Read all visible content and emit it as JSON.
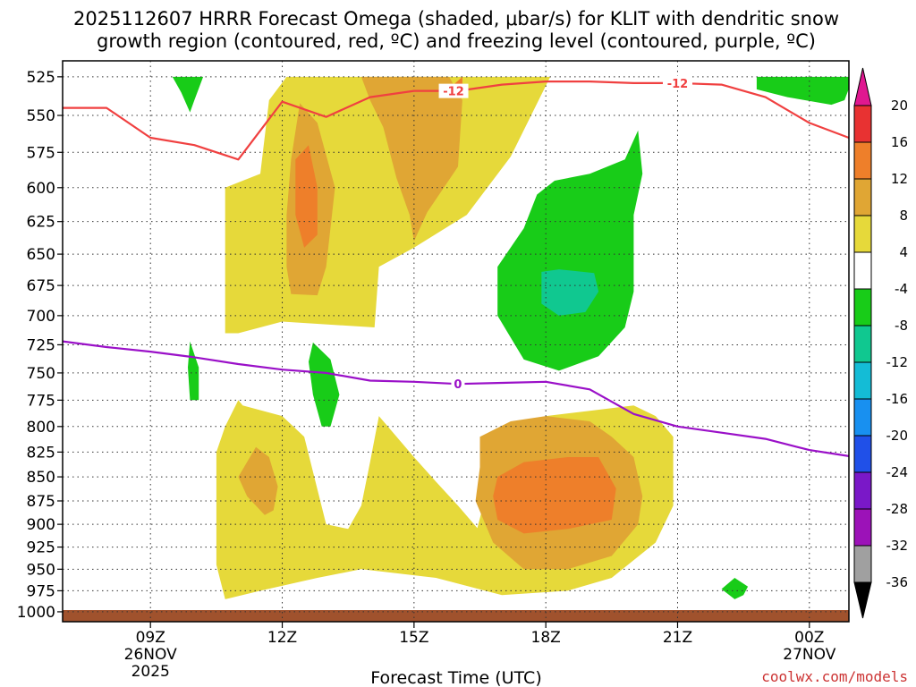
{
  "chart_data": {
    "type": "time-height contour",
    "title_line1": "2025112607 HRRR Forecast Omega (shaded, μbar/s) for KLIT with dendritic snow",
    "title_line2": "growth region (contoured, red, ºC) and freezing level (contoured, purple, ºC)",
    "xlabel": "Forecast Time (UTC)",
    "credit": "coolwx.com/models",
    "y_ticks": [
      "525",
      "550",
      "575",
      "600",
      "625",
      "650",
      "675",
      "700",
      "725",
      "750",
      "775",
      "800",
      "825",
      "850",
      "875",
      "900",
      "925",
      "950",
      "975",
      "1000"
    ],
    "x_ticks": [
      {
        "label": "09Z",
        "sub1": "26NOV",
        "sub2": "2025",
        "hour": 9
      },
      {
        "label": "12Z",
        "sub1": "",
        "sub2": "",
        "hour": 12
      },
      {
        "label": "15Z",
        "sub1": "",
        "sub2": "",
        "hour": 15
      },
      {
        "label": "18Z",
        "sub1": "",
        "sub2": "",
        "hour": 18
      },
      {
        "label": "21Z",
        "sub1": "",
        "sub2": "",
        "hour": 21
      },
      {
        "label": "00Z",
        "sub1": "27NOV",
        "sub2": "",
        "hour": 24
      }
    ],
    "x_range_hours": [
      7.0,
      24.9
    ],
    "colorbar": {
      "labels": [
        "20",
        "16",
        "12",
        "8",
        "4",
        "-4",
        "-8",
        "-12",
        "-16",
        "-20",
        "-24",
        "-28",
        "-32",
        "-36"
      ],
      "colors": [
        "#e83232",
        "#ee7f2a",
        "#e0a634",
        "#e6d93a",
        "#ffffff",
        "#18cc18",
        "#10c890",
        "#14bcd6",
        "#1890f0",
        "#2050e8",
        "#7a18c8",
        "#9c12b8",
        "#a0a0a0"
      ],
      "top_arrow": "#e01890",
      "bottom_arrow": "#000000"
    },
    "series": [
      {
        "name": "dendritic growth -12",
        "color": "#f04040",
        "label": "-12",
        "points": [
          [
            7.0,
            545
          ],
          [
            8.0,
            545
          ],
          [
            9.0,
            565
          ],
          [
            10.0,
            570
          ],
          [
            11.0,
            580
          ],
          [
            12.0,
            541
          ],
          [
            13.0,
            551
          ],
          [
            14.0,
            538
          ],
          [
            15.0,
            534
          ],
          [
            16.0,
            534
          ],
          [
            17.0,
            530
          ],
          [
            18.0,
            528
          ],
          [
            19.0,
            528
          ],
          [
            20.0,
            529
          ],
          [
            21.0,
            529
          ],
          [
            22.0,
            530
          ],
          [
            23.0,
            538
          ],
          [
            24.0,
            555
          ],
          [
            24.9,
            565
          ]
        ]
      },
      {
        "name": "freezing level 0",
        "color": "#9a10c8",
        "label": "0",
        "points": [
          [
            7.0,
            722
          ],
          [
            8.0,
            727
          ],
          [
            9.0,
            731
          ],
          [
            10.0,
            736
          ],
          [
            11.0,
            742
          ],
          [
            12.0,
            747
          ],
          [
            13.0,
            750
          ],
          [
            14.0,
            757
          ],
          [
            15.0,
            758
          ],
          [
            16.0,
            760
          ],
          [
            17.0,
            759
          ],
          [
            18.0,
            758
          ],
          [
            19.0,
            765
          ],
          [
            20.0,
            788
          ],
          [
            21.0,
            800
          ],
          [
            22.0,
            806
          ],
          [
            23.0,
            812
          ],
          [
            24.0,
            823
          ],
          [
            24.9,
            829
          ]
        ]
      }
    ],
    "shaded_regions": [
      {
        "level": "4 to 8",
        "color": "#e6d93a",
        "points": [
          [
            12.1,
            525
          ],
          [
            18.1,
            525
          ],
          [
            17.2,
            578
          ],
          [
            16.2,
            620
          ],
          [
            15.0,
            645
          ],
          [
            14.2,
            660
          ],
          [
            14.1,
            710
          ],
          [
            12.0,
            705
          ],
          [
            11.0,
            715
          ],
          [
            10.7,
            715
          ],
          [
            10.7,
            600
          ],
          [
            11.5,
            590
          ],
          [
            11.7,
            540
          ]
        ]
      },
      {
        "level": "4 to 8",
        "color": "#e6d93a",
        "points": [
          [
            11.0,
            775
          ],
          [
            11.1,
            780
          ],
          [
            12.0,
            790
          ],
          [
            12.5,
            810
          ],
          [
            13.0,
            900
          ],
          [
            13.5,
            905
          ],
          [
            13.8,
            880
          ],
          [
            14.0,
            835
          ],
          [
            14.2,
            790
          ],
          [
            15.0,
            830
          ],
          [
            15.5,
            855
          ],
          [
            16.0,
            880
          ],
          [
            16.9,
            930
          ],
          [
            16.2,
            950
          ],
          [
            16.8,
            840
          ],
          [
            17.2,
            810
          ],
          [
            18.0,
            790
          ],
          [
            19.0,
            785
          ],
          [
            20.0,
            780
          ],
          [
            20.5,
            790
          ],
          [
            20.9,
            810
          ],
          [
            20.9,
            880
          ],
          [
            20.5,
            920
          ],
          [
            19.5,
            960
          ],
          [
            18.5,
            975
          ],
          [
            17.0,
            980
          ],
          [
            15.5,
            960
          ],
          [
            13.8,
            950
          ],
          [
            12.8,
            960
          ],
          [
            11.5,
            975
          ],
          [
            10.7,
            985
          ],
          [
            10.5,
            945
          ],
          [
            10.5,
            825
          ],
          [
            10.7,
            800
          ]
        ]
      },
      {
        "level": "8 to 12",
        "color": "#e0a634",
        "points": [
          [
            13.8,
            525
          ],
          [
            15.8,
            525
          ],
          [
            16.1,
            540
          ],
          [
            16.0,
            585
          ],
          [
            15.3,
            618
          ],
          [
            15.0,
            640
          ],
          [
            14.9,
            620
          ],
          [
            14.6,
            593
          ],
          [
            14.3,
            558
          ],
          [
            14.0,
            540
          ]
        ]
      },
      {
        "level": "8 to 12",
        "color": "#e0a634",
        "points": [
          [
            12.4,
            542
          ],
          [
            12.8,
            555
          ],
          [
            13.2,
            600
          ],
          [
            13.0,
            660
          ],
          [
            12.8,
            683
          ],
          [
            12.2,
            682
          ],
          [
            12.1,
            660
          ],
          [
            12.1,
            620
          ],
          [
            12.2,
            580
          ]
        ]
      },
      {
        "level": "8 to 12",
        "color": "#e0a634",
        "points": [
          [
            16.5,
            810
          ],
          [
            17.2,
            795
          ],
          [
            18.0,
            790
          ],
          [
            19.0,
            795
          ],
          [
            19.5,
            810
          ],
          [
            20.0,
            830
          ],
          [
            20.2,
            870
          ],
          [
            20.1,
            900
          ],
          [
            19.5,
            935
          ],
          [
            18.5,
            950
          ],
          [
            17.5,
            950
          ],
          [
            16.8,
            920
          ],
          [
            16.4,
            875
          ],
          [
            16.5,
            840
          ]
        ]
      },
      {
        "level": "8 to 12",
        "color": "#e0a634",
        "points": [
          [
            11.4,
            820
          ],
          [
            11.7,
            830
          ],
          [
            11.9,
            860
          ],
          [
            11.8,
            885
          ],
          [
            11.6,
            890
          ],
          [
            11.2,
            870
          ],
          [
            11.0,
            850
          ]
        ]
      },
      {
        "level": "12 to 16",
        "color": "#ee7f2a",
        "points": [
          [
            12.6,
            570
          ],
          [
            12.8,
            600
          ],
          [
            12.8,
            635
          ],
          [
            12.5,
            645
          ],
          [
            12.3,
            620
          ],
          [
            12.3,
            580
          ]
        ]
      },
      {
        "level": "12 to 16",
        "color": "#ee7f2a",
        "points": [
          [
            16.9,
            850
          ],
          [
            17.5,
            835
          ],
          [
            18.5,
            830
          ],
          [
            19.2,
            830
          ],
          [
            19.6,
            862
          ],
          [
            19.5,
            895
          ],
          [
            18.5,
            905
          ],
          [
            17.5,
            910
          ],
          [
            16.9,
            895
          ],
          [
            16.8,
            870
          ]
        ]
      },
      {
        "level": "12 to 16",
        "color": "#ee7f2a",
        "points": [
          [
            15.9,
            530
          ],
          [
            16.1,
            525
          ],
          [
            16.1,
            535
          ]
        ]
      },
      {
        "level": "-4 to -8",
        "color": "#18cc18",
        "points": [
          [
            17.5,
            630
          ],
          [
            17.8,
            605
          ],
          [
            18.2,
            595
          ],
          [
            19.0,
            590
          ],
          [
            19.8,
            580
          ],
          [
            20.1,
            560
          ],
          [
            20.2,
            590
          ],
          [
            20.0,
            620
          ],
          [
            20.0,
            680
          ],
          [
            19.8,
            710
          ],
          [
            19.2,
            735
          ],
          [
            18.3,
            748
          ],
          [
            17.5,
            738
          ],
          [
            16.9,
            700
          ],
          [
            16.9,
            660
          ]
        ]
      },
      {
        "level": "-4 to -8",
        "color": "#18cc18",
        "points": [
          [
            9.5,
            525
          ],
          [
            10.2,
            525
          ],
          [
            10.0,
            540
          ],
          [
            9.9,
            548
          ],
          [
            9.7,
            535
          ]
        ]
      },
      {
        "level": "-4 to -8",
        "color": "#18cc18",
        "points": [
          [
            22.8,
            525
          ],
          [
            25.0,
            525
          ],
          [
            24.8,
            540
          ],
          [
            24.5,
            543
          ],
          [
            23.5,
            538
          ],
          [
            22.8,
            533
          ]
        ]
      },
      {
        "level": "-4 to -8",
        "color": "#18cc18",
        "points": [
          [
            12.7,
            723
          ],
          [
            13.1,
            738
          ],
          [
            13.3,
            770
          ],
          [
            13.1,
            800
          ],
          [
            12.9,
            800
          ],
          [
            12.7,
            770
          ],
          [
            12.6,
            740
          ]
        ]
      },
      {
        "level": "-4 to -8",
        "color": "#18cc18",
        "points": [
          [
            9.9,
            722
          ],
          [
            10.1,
            745
          ],
          [
            10.1,
            775
          ],
          [
            9.9,
            775
          ],
          [
            9.85,
            745
          ]
        ]
      },
      {
        "level": "-4 to -8",
        "color": "#18cc18",
        "points": [
          [
            22.0,
            973
          ],
          [
            22.3,
            960
          ],
          [
            22.6,
            970
          ],
          [
            22.5,
            980
          ],
          [
            22.3,
            985
          ]
        ]
      },
      {
        "level": "-8 to -12",
        "color": "#10c890",
        "points": [
          [
            17.9,
            664
          ],
          [
            18.3,
            662
          ],
          [
            19.1,
            665
          ],
          [
            19.2,
            680
          ],
          [
            18.9,
            697
          ],
          [
            18.3,
            700
          ],
          [
            17.9,
            690
          ]
        ]
      }
    ]
  }
}
